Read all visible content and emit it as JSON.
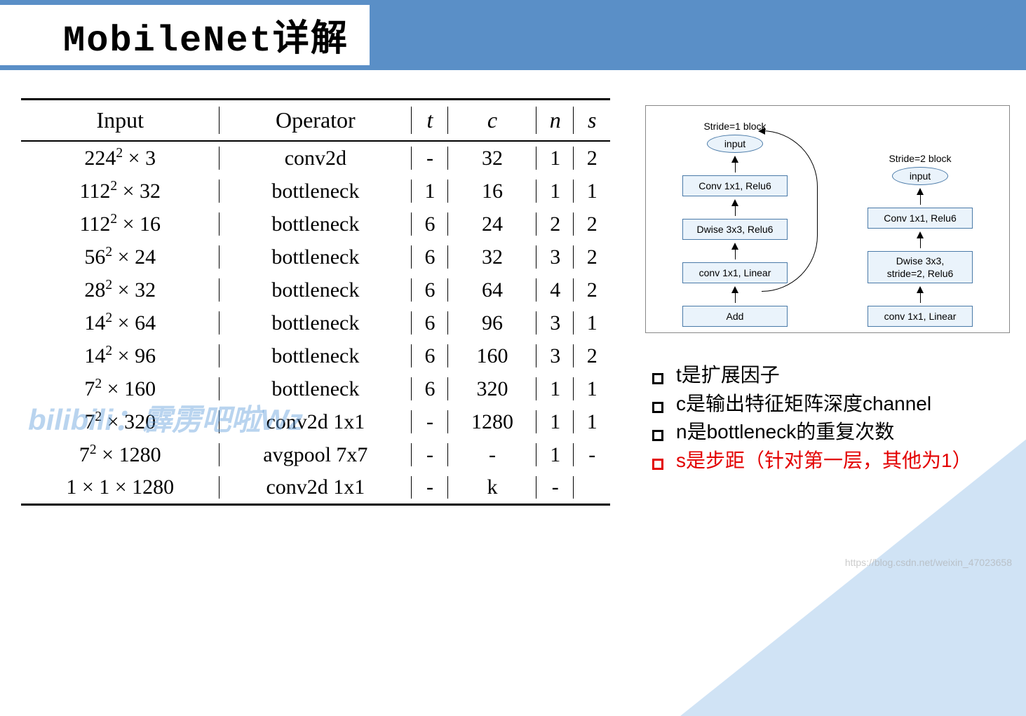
{
  "title": "MobileNet详解",
  "table": {
    "headers": [
      "Input",
      "Operator",
      "t",
      "c",
      "n",
      "s"
    ],
    "rows": [
      {
        "input_base": "224",
        "input_sup": "2",
        "input_ch": "3",
        "op": "conv2d",
        "t": "-",
        "c": "32",
        "n": "1",
        "s": "2"
      },
      {
        "input_base": "112",
        "input_sup": "2",
        "input_ch": "32",
        "op": "bottleneck",
        "t": "1",
        "c": "16",
        "n": "1",
        "s": "1"
      },
      {
        "input_base": "112",
        "input_sup": "2",
        "input_ch": "16",
        "op": "bottleneck",
        "t": "6",
        "c": "24",
        "n": "2",
        "s": "2"
      },
      {
        "input_base": "56",
        "input_sup": "2",
        "input_ch": "24",
        "op": "bottleneck",
        "t": "6",
        "c": "32",
        "n": "3",
        "s": "2"
      },
      {
        "input_base": "28",
        "input_sup": "2",
        "input_ch": "32",
        "op": "bottleneck",
        "t": "6",
        "c": "64",
        "n": "4",
        "s": "2"
      },
      {
        "input_base": "14",
        "input_sup": "2",
        "input_ch": "64",
        "op": "bottleneck",
        "t": "6",
        "c": "96",
        "n": "3",
        "s": "1"
      },
      {
        "input_base": "14",
        "input_sup": "2",
        "input_ch": "96",
        "op": "bottleneck",
        "t": "6",
        "c": "160",
        "n": "3",
        "s": "2"
      },
      {
        "input_base": "7",
        "input_sup": "2",
        "input_ch": "160",
        "op": "bottleneck",
        "t": "6",
        "c": "320",
        "n": "1",
        "s": "1"
      },
      {
        "input_base": "7",
        "input_sup": "2",
        "input_ch": "320",
        "op": "conv2d 1x1",
        "t": "-",
        "c": "1280",
        "n": "1",
        "s": "1"
      },
      {
        "input_base": "7",
        "input_sup": "2",
        "input_ch": "1280",
        "op": "avgpool 7x7",
        "t": "-",
        "c": "-",
        "n": "1",
        "s": "-"
      },
      {
        "input_plain": "1 × 1 × 1280",
        "op": "conv2d 1x1",
        "t": "-",
        "c": "k",
        "n": "-",
        "s": ""
      }
    ]
  },
  "diagram": {
    "stride1": {
      "nodes": [
        "input",
        "Conv 1x1, Relu6",
        "Dwise 3x3, Relu6",
        "conv 1x1, Linear",
        "Add"
      ],
      "caption": "Stride=1 block"
    },
    "stride2": {
      "nodes": [
        "input",
        "Conv 1x1, Relu6",
        "Dwise 3x3,\nstride=2, Relu6",
        "conv 1x1, Linear"
      ],
      "caption": "Stride=2 block"
    }
  },
  "bullets": [
    {
      "text": "t是扩展因子",
      "red": false
    },
    {
      "text": "c是输出特征矩阵深度channel",
      "red": false
    },
    {
      "text": "n是bottleneck的重复次数",
      "red": false
    },
    {
      "text": "s是步距（针对第一层，其他为1）",
      "red": true
    }
  ],
  "watermark_main": "bilibili：霹雳吧啦Wz",
  "watermark_corner": "https://blog.csdn.net/weixin_47023658",
  "colors": {
    "header_band": "#5a8fc7",
    "node_fill": "#eaf3fb",
    "node_border": "#4a7aa8",
    "red": "#e30000",
    "triangle_bg": "#d0e3f5"
  }
}
